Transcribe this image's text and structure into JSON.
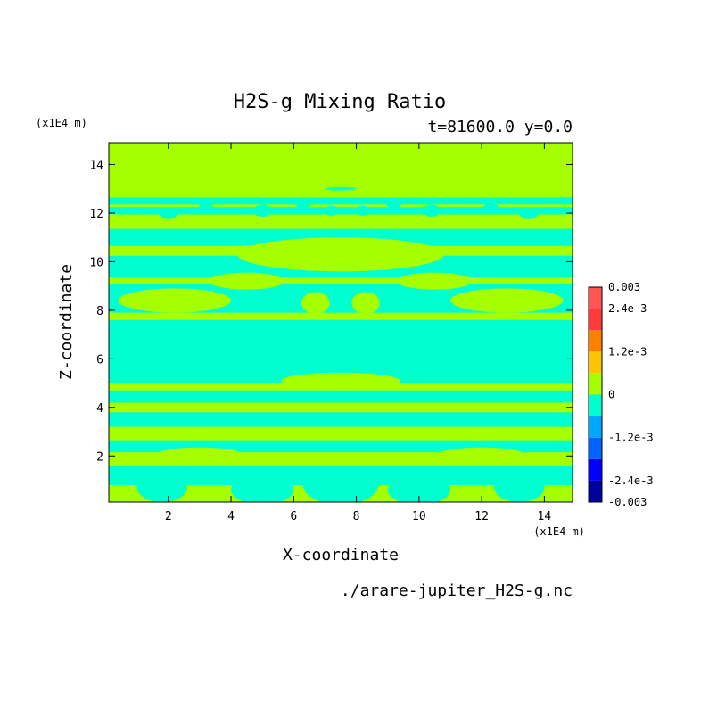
{
  "chart_data": {
    "type": "heatmap",
    "title": "H2S-g Mixing Ratio",
    "subtitle": "t=81600.0 y=0.0",
    "xlabel": "X-coordinate",
    "ylabel": "Z-coordinate",
    "x_unit": "(x1E4 m)",
    "y_unit": "(x1E4 m)",
    "footer": "./arare-jupiter_H2S-g.nc",
    "xlim": [
      0.1,
      14.9
    ],
    "ylim": [
      0.1,
      14.9
    ],
    "x_ticks": [
      "2",
      "4",
      "6",
      "8",
      "10",
      "12",
      "14"
    ],
    "x_tick_values": [
      2,
      4,
      6,
      8,
      10,
      12,
      14
    ],
    "y_ticks": [
      "2",
      "4",
      "6",
      "8",
      "10",
      "12",
      "14"
    ],
    "y_tick_values": [
      2,
      4,
      6,
      8,
      10,
      12,
      14
    ],
    "colorbar": {
      "labels": [
        "0.003",
        "2.4e-3",
        "1.2e-3",
        "0",
        "-1.2e-3",
        "-2.4e-3",
        "-0.003"
      ],
      "label_values": [
        0.003,
        0.0024,
        0.0012,
        0,
        -0.0012,
        -0.0024,
        -0.003
      ],
      "levels": [
        -0.003,
        -0.0024,
        -0.0018,
        -0.0012,
        -0.0006,
        0,
        0.0006,
        0.0012,
        0.0018,
        0.0024,
        0.003
      ],
      "colors": [
        "#00009a",
        "#0000ff",
        "#0062ff",
        "#00a6ff",
        "#00ffd0",
        "#a6ff00",
        "#ffc400",
        "#ff8000",
        "#ff3a3a",
        "#ff5555"
      ]
    },
    "field": {
      "background_level": "0 to 0.0006",
      "background_color": "#a6ff00",
      "feature_level": "-0.0006 to 0",
      "feature_color": "#00ffd0",
      "features": [
        {
          "kind": "band",
          "z_center": 12.5,
          "z_half": 0.15
        },
        {
          "kind": "band",
          "z_center": 12.1,
          "z_half": 0.15
        },
        {
          "kind": "band",
          "z_center": 11.0,
          "z_half": 0.35
        },
        {
          "kind": "band",
          "z_center": 9.8,
          "z_half": 0.45
        },
        {
          "kind": "band",
          "z_center": 8.5,
          "z_half": 0.6
        },
        {
          "kind": "band",
          "z_center": 6.3,
          "z_half": 1.3
        },
        {
          "kind": "band",
          "z_center": 4.45,
          "z_half": 0.25
        },
        {
          "kind": "band",
          "z_center": 3.5,
          "z_half": 0.3
        },
        {
          "kind": "band",
          "z_center": 2.4,
          "z_half": 0.25
        },
        {
          "kind": "band",
          "z_center": 1.2,
          "z_half": 0.4
        },
        {
          "kind": "blob",
          "x": 2.0,
          "z": 12.0,
          "rx": 0.3,
          "rz": 0.25
        },
        {
          "kind": "blob",
          "x": 3.2,
          "z": 12.2,
          "rx": 0.25,
          "rz": 0.2
        },
        {
          "kind": "blob",
          "x": 5.0,
          "z": 12.1,
          "rx": 0.3,
          "rz": 0.25
        },
        {
          "kind": "blob",
          "x": 6.3,
          "z": 12.4,
          "rx": 0.25,
          "rz": 0.2
        },
        {
          "kind": "blob",
          "x": 7.2,
          "z": 12.1,
          "rx": 0.25,
          "rz": 0.2
        },
        {
          "kind": "blob",
          "x": 8.2,
          "z": 12.1,
          "rx": 0.25,
          "rz": 0.2
        },
        {
          "kind": "blob",
          "x": 9.2,
          "z": 12.4,
          "rx": 0.25,
          "rz": 0.2
        },
        {
          "kind": "blob",
          "x": 10.4,
          "z": 12.1,
          "rx": 0.3,
          "rz": 0.25
        },
        {
          "kind": "blob",
          "x": 12.3,
          "z": 12.2,
          "rx": 0.25,
          "rz": 0.2
        },
        {
          "kind": "blob",
          "x": 13.5,
          "z": 12.0,
          "rx": 0.3,
          "rz": 0.25
        },
        {
          "kind": "blob",
          "x": 7.5,
          "z": 13.0,
          "rx": 0.5,
          "rz": 0.07
        },
        {
          "kind": "blob",
          "x": 1.8,
          "z": 0.7,
          "rx": 0.8,
          "rz": 0.6
        },
        {
          "kind": "blob",
          "x": 5.0,
          "z": 0.6,
          "rx": 1.0,
          "rz": 0.6
        },
        {
          "kind": "blob",
          "x": 7.5,
          "z": 0.8,
          "rx": 1.2,
          "rz": 0.8
        },
        {
          "kind": "blob",
          "x": 10.0,
          "z": 0.6,
          "rx": 1.0,
          "rz": 0.6
        },
        {
          "kind": "blob",
          "x": 13.2,
          "z": 0.7,
          "rx": 0.8,
          "rz": 0.6
        }
      ],
      "positive_features": [
        {
          "kind": "blob",
          "x": 7.5,
          "z": 5.1,
          "rx": 1.9,
          "rz": 0.33
        },
        {
          "kind": "blob",
          "x": 7.5,
          "z": 10.3,
          "rx": 3.3,
          "rz": 0.7
        },
        {
          "kind": "blob",
          "x": 2.2,
          "z": 8.4,
          "rx": 1.8,
          "rz": 0.5
        },
        {
          "kind": "blob",
          "x": 12.8,
          "z": 8.4,
          "rx": 1.8,
          "rz": 0.5
        },
        {
          "kind": "blob",
          "x": 4.5,
          "z": 9.2,
          "rx": 1.2,
          "rz": 0.35
        },
        {
          "kind": "blob",
          "x": 10.5,
          "z": 9.2,
          "rx": 1.2,
          "rz": 0.35
        },
        {
          "kind": "blob",
          "x": 6.7,
          "z": 8.3,
          "rx": 0.45,
          "rz": 0.45
        },
        {
          "kind": "blob",
          "x": 8.3,
          "z": 8.3,
          "rx": 0.45,
          "rz": 0.45
        },
        {
          "kind": "blob",
          "x": 3.0,
          "z": 2.1,
          "rx": 1.3,
          "rz": 0.25
        },
        {
          "kind": "blob",
          "x": 12.0,
          "z": 2.1,
          "rx": 1.3,
          "rz": 0.25
        }
      ]
    }
  }
}
